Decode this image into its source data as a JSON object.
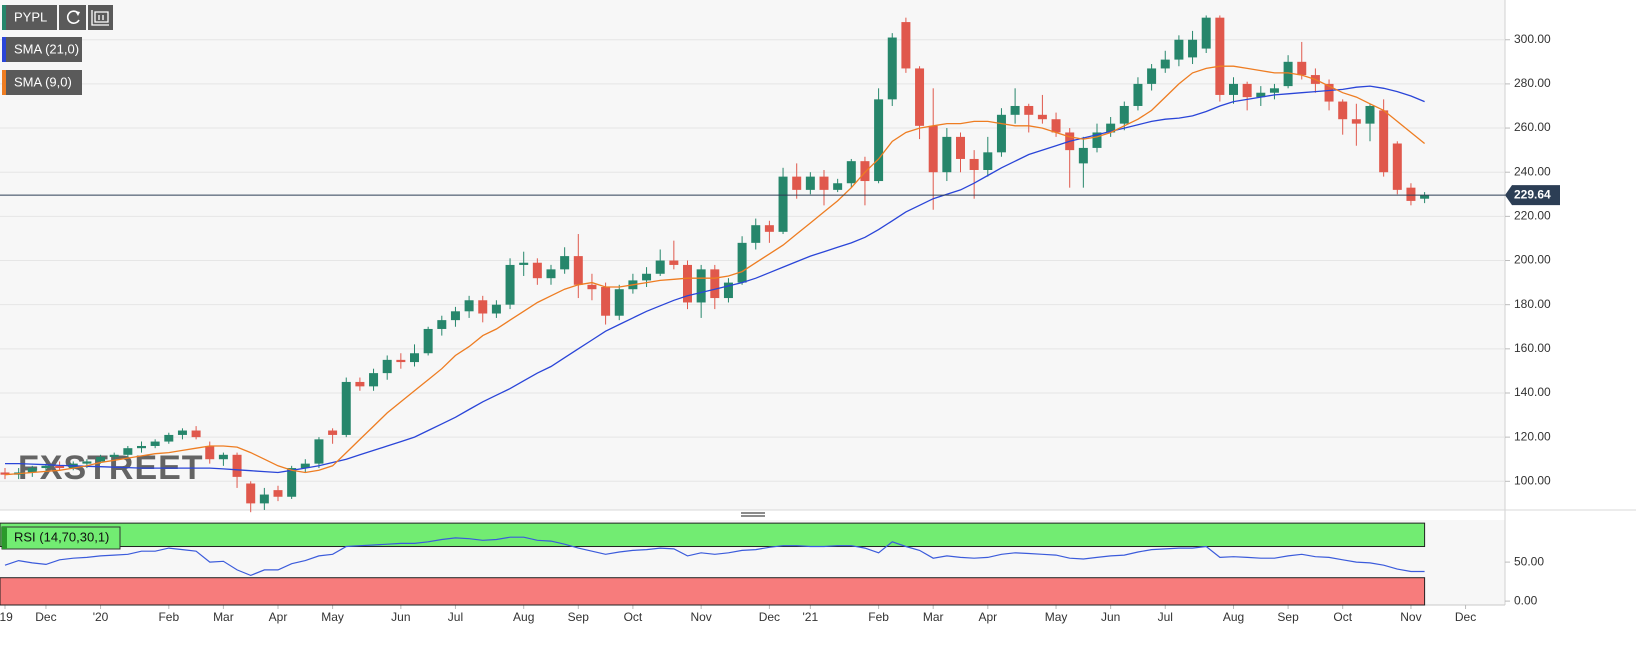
{
  "chart_data": [
    {
      "type": "candlestick",
      "symbol": "PYPL",
      "watermark": "FXSTREET",
      "up_color": "#26866b",
      "down_color": "#e0584c",
      "categories": [
        "'19",
        null,
        null,
        "Dec",
        null,
        null,
        null,
        "'20",
        null,
        null,
        null,
        null,
        "Feb",
        null,
        null,
        null,
        "Mar",
        null,
        null,
        null,
        "Apr",
        null,
        null,
        null,
        "May",
        null,
        null,
        null,
        null,
        "Jun",
        null,
        null,
        null,
        "Jul",
        null,
        null,
        null,
        null,
        "Aug",
        null,
        null,
        null,
        "Sep",
        null,
        null,
        null,
        "Oct",
        null,
        null,
        null,
        null,
        "Nov",
        null,
        null,
        null,
        null,
        "Dec",
        null,
        null,
        "'21",
        null,
        null,
        null,
        null,
        "Feb",
        null,
        null,
        null,
        "Mar",
        null,
        null,
        null,
        "Apr",
        null,
        null,
        null,
        null,
        "May",
        null,
        null,
        null,
        "Jun",
        null,
        null,
        null,
        "Jul",
        null,
        null,
        null,
        null,
        "Aug",
        null,
        null,
        null,
        "Sep",
        null,
        null,
        null,
        "Oct",
        null,
        null,
        null,
        null,
        "Nov",
        null,
        null,
        null,
        "Dec"
      ],
      "open": [
        104,
        103,
        104,
        106,
        107,
        106,
        108,
        109,
        111,
        112,
        115,
        116,
        118,
        121,
        123,
        116,
        110,
        112,
        99,
        90,
        96,
        93,
        106,
        108,
        123,
        121,
        145,
        143,
        149,
        155,
        154,
        158,
        169,
        173,
        177,
        182,
        176,
        180,
        198,
        199,
        192,
        196,
        202,
        189,
        188,
        175,
        187,
        191,
        194,
        200,
        198,
        181,
        196,
        183,
        190,
        208,
        216,
        213,
        238,
        232,
        238,
        232,
        235,
        245,
        236,
        273,
        308,
        287,
        261,
        240,
        256,
        246,
        241,
        249,
        266,
        270,
        266,
        264,
        258,
        244,
        251,
        258,
        262,
        270,
        280,
        287,
        291,
        292,
        296,
        310,
        275,
        280,
        274,
        276,
        279,
        290,
        284,
        280,
        272,
        264,
        262,
        268,
        253,
        233,
        228,
        null,
        null,
        null
      ],
      "high": [
        106,
        106,
        107,
        108,
        109,
        109,
        110,
        112,
        113,
        116,
        118,
        119,
        122,
        124,
        125,
        118,
        113,
        113,
        100,
        97,
        98,
        107,
        110,
        120,
        124,
        147,
        147,
        151,
        157,
        158,
        162,
        170,
        175,
        179,
        184,
        184,
        182,
        201,
        204,
        201,
        198,
        206,
        212,
        194,
        190,
        189,
        194,
        197,
        205,
        209,
        200,
        198,
        198,
        192,
        211,
        219,
        218,
        242,
        244,
        240,
        241,
        237,
        246,
        247,
        278,
        303,
        310,
        288,
        278,
        260,
        258,
        250,
        256,
        269,
        278,
        271,
        275,
        267,
        260,
        256,
        262,
        265,
        272,
        283,
        289,
        295,
        302,
        304,
        311,
        311,
        283,
        281,
        279,
        280,
        293,
        299,
        287,
        282,
        273,
        271,
        271,
        273,
        254,
        235,
        231,
        null,
        null,
        null
      ],
      "low": [
        101,
        101,
        102,
        104,
        105,
        105,
        106,
        108,
        109,
        111,
        113,
        115,
        117,
        119,
        119,
        108,
        107,
        97,
        86,
        87,
        91,
        92,
        104,
        106,
        117,
        120,
        141,
        141,
        146,
        151,
        152,
        157,
        166,
        170,
        174,
        172,
        174,
        178,
        193,
        189,
        189,
        194,
        183,
        182,
        171,
        173,
        185,
        188,
        193,
        196,
        178,
        174,
        178,
        181,
        189,
        205,
        208,
        212,
        228,
        230,
        225,
        231,
        233,
        225,
        235,
        270,
        285,
        255,
        223,
        236,
        240,
        228,
        238,
        247,
        262,
        258,
        262,
        256,
        233,
        233,
        249,
        256,
        259,
        268,
        277,
        285,
        288,
        289,
        294,
        272,
        271,
        268,
        270,
        273,
        278,
        282,
        276,
        268,
        257,
        252,
        254,
        238,
        230,
        225,
        226,
        null,
        null,
        null
      ],
      "close": [
        103,
        104,
        106,
        107,
        106,
        108,
        109,
        111,
        112,
        115,
        116,
        118,
        121,
        123,
        120,
        110,
        112,
        102,
        90,
        94,
        93,
        106,
        108,
        119,
        121,
        145,
        143,
        149,
        155,
        154,
        158,
        169,
        173,
        177,
        182,
        176,
        180,
        198,
        199,
        192,
        196,
        202,
        189,
        187,
        175,
        187,
        191,
        194,
        200,
        198,
        181,
        196,
        183,
        190,
        208,
        216,
        213,
        238,
        232,
        238,
        232,
        235,
        245,
        236,
        273,
        301,
        287,
        261,
        240,
        256,
        246,
        241,
        249,
        266,
        270,
        266,
        264,
        258,
        250,
        251,
        258,
        262,
        270,
        280,
        287,
        291,
        300,
        300,
        310,
        275,
        280,
        274,
        276,
        278,
        290,
        284,
        280,
        272,
        264,
        262,
        270,
        240,
        232,
        227,
        229.64,
        null,
        null,
        null
      ],
      "series": [
        {
          "name": "SMA (21,0)",
          "color": "#2a45d8",
          "values": [
            108,
            108,
            107.8,
            107.5,
            107.2,
            107,
            106.8,
            106.6,
            106.4,
            106.2,
            106,
            106,
            106,
            106,
            106,
            106,
            105.6,
            105.2,
            104.8,
            104.4,
            104,
            105,
            106,
            107,
            108.5,
            110,
            112,
            114,
            116,
            118,
            120,
            123,
            126,
            129,
            132.5,
            136,
            139,
            142,
            145.5,
            149,
            152,
            156,
            160,
            164,
            168,
            171,
            174,
            177,
            179.5,
            182,
            184,
            185.5,
            187,
            188.5,
            190,
            192,
            194.5,
            197,
            199.5,
            202,
            204,
            206,
            208,
            210.5,
            214,
            218,
            222,
            225,
            228,
            230,
            232,
            235,
            238.5,
            242,
            245,
            248,
            250,
            252,
            254,
            255.5,
            257,
            258.5,
            260,
            261.5,
            263,
            264,
            264.5,
            265.5,
            267.5,
            270,
            272,
            273,
            274,
            275,
            275.5,
            276,
            276.5,
            277,
            277.5,
            278.5,
            279,
            278,
            276.5,
            274.5,
            272,
            null,
            null,
            null
          ]
        },
        {
          "name": "SMA (9,0)",
          "color": "#ee7d22",
          "values": [
            103,
            103.5,
            104,
            104.5,
            105,
            106,
            107,
            108.5,
            109.5,
            110.5,
            111.5,
            112.5,
            113,
            114,
            115,
            116,
            116,
            115.5,
            113,
            110,
            107,
            105,
            104,
            105,
            107,
            113,
            119,
            125,
            131,
            136,
            141,
            146,
            151,
            157,
            161,
            166,
            169,
            173,
            177,
            181,
            184,
            187,
            189,
            190,
            188,
            188,
            189,
            190,
            191,
            191.5,
            192,
            192,
            192,
            193,
            195,
            199,
            203,
            207,
            212,
            217,
            222,
            227,
            233,
            240,
            246,
            254,
            258,
            260,
            261,
            262,
            262,
            263,
            263,
            262,
            261,
            261,
            260,
            258,
            256,
            255,
            256,
            258,
            261,
            264,
            268,
            274,
            280,
            285,
            287,
            288,
            288,
            287,
            286,
            285,
            285,
            284,
            282,
            279,
            276,
            274,
            271,
            268,
            263,
            258,
            253,
            null,
            null,
            null
          ]
        }
      ],
      "last_price": 229.64,
      "ylim": [
        87,
        318
      ],
      "yticks": [
        {
          "value": 100,
          "label": "100.00"
        },
        {
          "value": 120,
          "label": "120.00"
        },
        {
          "value": 140,
          "label": "140.00"
        },
        {
          "value": 160,
          "label": "160.00"
        },
        {
          "value": 180,
          "label": "180.00"
        },
        {
          "value": 200,
          "label": "200.00"
        },
        {
          "value": 220,
          "label": "220.00"
        },
        {
          "value": 240,
          "label": "240.00"
        },
        {
          "value": 260,
          "label": "260.00"
        },
        {
          "value": 280,
          "label": "280.00"
        },
        {
          "value": 300,
          "label": "300.00"
        }
      ],
      "grid": true
    },
    {
      "type": "line",
      "title": "RSI (14,70,30,1)",
      "color": "#3b5bdb",
      "values": [
        46,
        52,
        49,
        47,
        53,
        55,
        56,
        58,
        59,
        60,
        64,
        64,
        68,
        66,
        64,
        50,
        51,
        40,
        33,
        40,
        40,
        48,
        52,
        58,
        60,
        70,
        71,
        72,
        73,
        74,
        74,
        76,
        79,
        81,
        80,
        78,
        79,
        82,
        82,
        78,
        77,
        73,
        68,
        64,
        60,
        63,
        65,
        66,
        68,
        67,
        58,
        62,
        60,
        62,
        65,
        66,
        69,
        71,
        71,
        70,
        70,
        71,
        71,
        68,
        62,
        76,
        70,
        65,
        55,
        58,
        56,
        55,
        56,
        60,
        62,
        61,
        60,
        59,
        55,
        54,
        56,
        58,
        59,
        63,
        66,
        67,
        68,
        68,
        70,
        56,
        57,
        56,
        55,
        55,
        58,
        60,
        57,
        56,
        53,
        50,
        49,
        46,
        41,
        38,
        38,
        null,
        null,
        null
      ],
      "bands": [
        {
          "from": 70,
          "to": 100,
          "color": "#72ec72"
        },
        {
          "from": -5,
          "to": 30,
          "color": "#f77c7c"
        }
      ],
      "ylim": [
        -5,
        104
      ],
      "yticks": [
        {
          "value": 0,
          "label": "0.00"
        },
        {
          "value": 50,
          "label": "50.00"
        }
      ]
    }
  ]
}
